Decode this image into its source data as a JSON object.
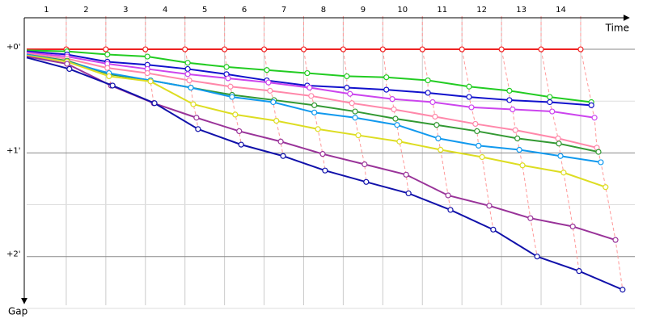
{
  "chart_data": {
    "type": "line",
    "x_label": "Time",
    "y_label": "Gap",
    "xlim": [
      0,
      15.37
    ],
    "ylim": [
      -0.32,
      2.47
    ],
    "y_inverted": true,
    "grid": true,
    "xticks": [
      {
        "value": 0.5,
        "label": "1"
      },
      {
        "value": 1.5,
        "label": "2"
      },
      {
        "value": 2.5,
        "label": "3"
      },
      {
        "value": 3.5,
        "label": "4"
      },
      {
        "value": 4.5,
        "label": "5"
      },
      {
        "value": 5.5,
        "label": "6"
      },
      {
        "value": 6.5,
        "label": "7"
      },
      {
        "value": 7.5,
        "label": "8"
      },
      {
        "value": 8.5,
        "label": "9"
      },
      {
        "value": 9.5,
        "label": "10"
      },
      {
        "value": 10.5,
        "label": "11"
      },
      {
        "value": 11.5,
        "label": "12"
      },
      {
        "value": 12.5,
        "label": "13"
      },
      {
        "value": 13.5,
        "label": "14"
      }
    ],
    "yticks": [
      {
        "value": 0,
        "label": "+0'"
      },
      {
        "value": 1,
        "label": "+1'"
      },
      {
        "value": 2,
        "label": "+2'"
      }
    ],
    "series": [
      {
        "color": "#ee2222",
        "x": [
          0,
          1,
          2,
          3,
          4,
          5,
          6,
          7,
          8,
          9,
          10,
          11,
          12,
          13,
          14
        ],
        "values": [
          0,
          0,
          0,
          0,
          0,
          0,
          0,
          0,
          0,
          0,
          0,
          0,
          0,
          0,
          0
        ]
      },
      {
        "color": "#22cc22",
        "x": [
          0,
          1.02,
          2.04,
          3.05,
          4.07,
          5.05,
          6.07,
          7.09,
          8.09,
          9.09,
          10.14,
          11.18,
          12.2,
          13.22,
          14.27
        ],
        "values": [
          0.01,
          0.02,
          0.05,
          0.07,
          0.13,
          0.17,
          0.2,
          0.23,
          0.26,
          0.27,
          0.3,
          0.36,
          0.4,
          0.46,
          0.51
        ]
      },
      {
        "color": "#1111cc",
        "x": [
          0,
          1.02,
          2.04,
          3.05,
          4.07,
          5.05,
          6.07,
          7.09,
          8.09,
          9.09,
          10.14,
          11.18,
          12.2,
          13.22,
          14.27
        ],
        "values": [
          0.02,
          0.05,
          0.12,
          0.15,
          0.19,
          0.24,
          0.3,
          0.35,
          0.37,
          0.39,
          0.42,
          0.46,
          0.49,
          0.51,
          0.54
        ]
      },
      {
        "color": "#cc44ee",
        "x": [
          0,
          1.02,
          2.04,
          3.05,
          4.07,
          5.09,
          6.11,
          7.15,
          8.17,
          9.24,
          10.26,
          11.24,
          12.28,
          13.28,
          14.35
        ],
        "values": [
          0.03,
          0.07,
          0.14,
          0.19,
          0.24,
          0.28,
          0.32,
          0.37,
          0.43,
          0.48,
          0.51,
          0.56,
          0.58,
          0.6,
          0.66
        ]
      },
      {
        "color": "#ff88aa",
        "x": [
          0,
          1.02,
          2.04,
          3.05,
          4.11,
          5.15,
          6.15,
          7.19,
          8.22,
          9.28,
          10.32,
          11.34,
          12.35,
          13.43,
          14.41
        ],
        "values": [
          0.04,
          0.09,
          0.18,
          0.23,
          0.3,
          0.36,
          0.4,
          0.45,
          0.52,
          0.58,
          0.65,
          0.72,
          0.78,
          0.86,
          0.95
        ]
      },
      {
        "color": "#339933",
        "x": [
          0,
          1.02,
          2.08,
          3.13,
          4.15,
          5.19,
          6.25,
          7.27,
          8.3,
          9.32,
          10.36,
          11.38,
          12.4,
          13.45,
          14.45
        ],
        "values": [
          0.05,
          0.11,
          0.24,
          0.3,
          0.37,
          0.44,
          0.49,
          0.54,
          0.6,
          0.67,
          0.73,
          0.79,
          0.86,
          0.91,
          0.99
        ]
      },
      {
        "color": "#1199ee",
        "x": [
          0,
          1.02,
          2.08,
          3.13,
          4.15,
          5.19,
          6.23,
          7.27,
          8.3,
          9.36,
          10.4,
          11.42,
          12.45,
          13.49,
          14.51
        ],
        "values": [
          0.05,
          0.12,
          0.23,
          0.3,
          0.37,
          0.46,
          0.51,
          0.61,
          0.66,
          0.73,
          0.86,
          0.93,
          0.97,
          1.03,
          1.09
        ]
      },
      {
        "color": "#dddd22",
        "x": [
          0,
          1.02,
          2.08,
          3.13,
          4.21,
          5.27,
          6.31,
          7.36,
          8.38,
          9.42,
          10.46,
          11.51,
          12.53,
          13.57,
          14.63
        ],
        "values": [
          0.06,
          0.12,
          0.26,
          0.31,
          0.53,
          0.63,
          0.69,
          0.77,
          0.83,
          0.89,
          0.97,
          1.04,
          1.12,
          1.19,
          1.33
        ]
      },
      {
        "color": "#993399",
        "x": [
          0,
          1.02,
          2.13,
          3.21,
          4.29,
          5.37,
          6.42,
          7.48,
          8.54,
          9.59,
          10.65,
          11.69,
          12.73,
          13.8,
          14.88
        ],
        "values": [
          0.07,
          0.14,
          0.35,
          0.52,
          0.66,
          0.79,
          0.89,
          1.01,
          1.11,
          1.21,
          1.41,
          1.51,
          1.63,
          1.71,
          1.84
        ]
      },
      {
        "color": "#1111aa",
        "x": [
          0,
          1.08,
          2.17,
          3.23,
          4.33,
          5.42,
          6.48,
          7.54,
          8.58,
          9.65,
          10.71,
          11.79,
          12.9,
          13.96,
          15.06
        ],
        "values": [
          0.08,
          0.19,
          0.35,
          0.52,
          0.77,
          0.92,
          1.03,
          1.17,
          1.28,
          1.39,
          1.55,
          1.74,
          2,
          2.14,
          2.32
        ]
      }
    ]
  }
}
